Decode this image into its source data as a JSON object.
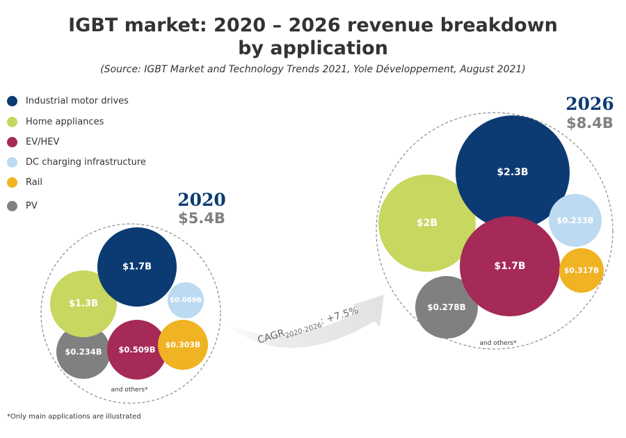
{
  "header": {
    "title_line1": "IGBT market: 2020 – 2026 revenue breakdown",
    "title_line2": "by application",
    "source": "(Source: IGBT Market and Technology Trends 2021, Yole Développement, August 2021)"
  },
  "footnote": "*Only main applications are illustrated",
  "chart_data": {
    "type": "bubble",
    "title": "IGBT market: 2020 – 2026 revenue breakdown by application",
    "legend_position": "top-left",
    "categories": [
      {
        "key": "industrial",
        "name": "Industrial motor drives",
        "color": "#0b3b72"
      },
      {
        "key": "home",
        "name": "Home appliances",
        "color": "#c7d75f"
      },
      {
        "key": "ev",
        "name": "EV/HEV",
        "color": "#a52a57"
      },
      {
        "key": "dc",
        "name": "DC charging infrastructure",
        "color": "#bcdaf1"
      },
      {
        "key": "rail",
        "name": "Rail",
        "color": "#f0b323"
      },
      {
        "key": "pv",
        "name": "PV",
        "color": "#808080"
      }
    ],
    "groups": [
      {
        "year": "2020",
        "total_label": "$5.4B",
        "total": 5.4,
        "others_label": "and others*",
        "values": [
          {
            "key": "industrial",
            "value": 1.7,
            "label": "$1.7B"
          },
          {
            "key": "home",
            "value": 1.3,
            "label": "$1.3B"
          },
          {
            "key": "ev",
            "value": 0.509,
            "label": "$0.509B"
          },
          {
            "key": "dc",
            "value": 0.069,
            "label": "$0.069B"
          },
          {
            "key": "rail",
            "value": 0.303,
            "label": "$0.303B"
          },
          {
            "key": "pv",
            "value": 0.234,
            "label": "$0.234B"
          }
        ]
      },
      {
        "year": "2026",
        "total_label": "$8.4B",
        "total": 8.4,
        "others_label": "and others*",
        "values": [
          {
            "key": "industrial",
            "value": 2.3,
            "label": "$2.3B"
          },
          {
            "key": "home",
            "value": 2.0,
            "label": "$2B"
          },
          {
            "key": "ev",
            "value": 1.7,
            "label": "$1.7B"
          },
          {
            "key": "dc",
            "value": 0.233,
            "label": "$0.233B"
          },
          {
            "key": "rail",
            "value": 0.317,
            "label": "$0.317B"
          },
          {
            "key": "pv",
            "value": 0.278,
            "label": "$0.278B"
          }
        ]
      }
    ],
    "cagr": {
      "prefix": "CAGR",
      "subscript": "2020-2026",
      "suffix": ": +7.5%"
    }
  }
}
